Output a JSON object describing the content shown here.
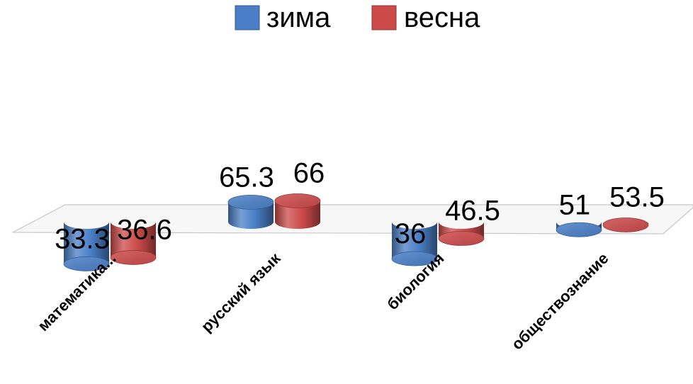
{
  "chart_data": {
    "type": "bar",
    "style": "3d-cylinder",
    "categories": [
      "математика...",
      "русский язык",
      "биология",
      "обществознание"
    ],
    "series": [
      {
        "name": "зима",
        "color": "#4a7fc7",
        "values": [
          33.3,
          65.3,
          36,
          51
        ]
      },
      {
        "name": "весна",
        "color": "#cc4a4a",
        "values": [
          36.6,
          66,
          46.5,
          53.5
        ]
      }
    ],
    "data_labels": [
      [
        "33.3",
        "65.3",
        "36",
        "51"
      ],
      [
        "36.6",
        "66",
        "46.5",
        "53.5"
      ]
    ],
    "legend_position": "top",
    "ylim": [
      0,
      70
    ],
    "grid": false,
    "floor_color": "#c8c8c8"
  }
}
